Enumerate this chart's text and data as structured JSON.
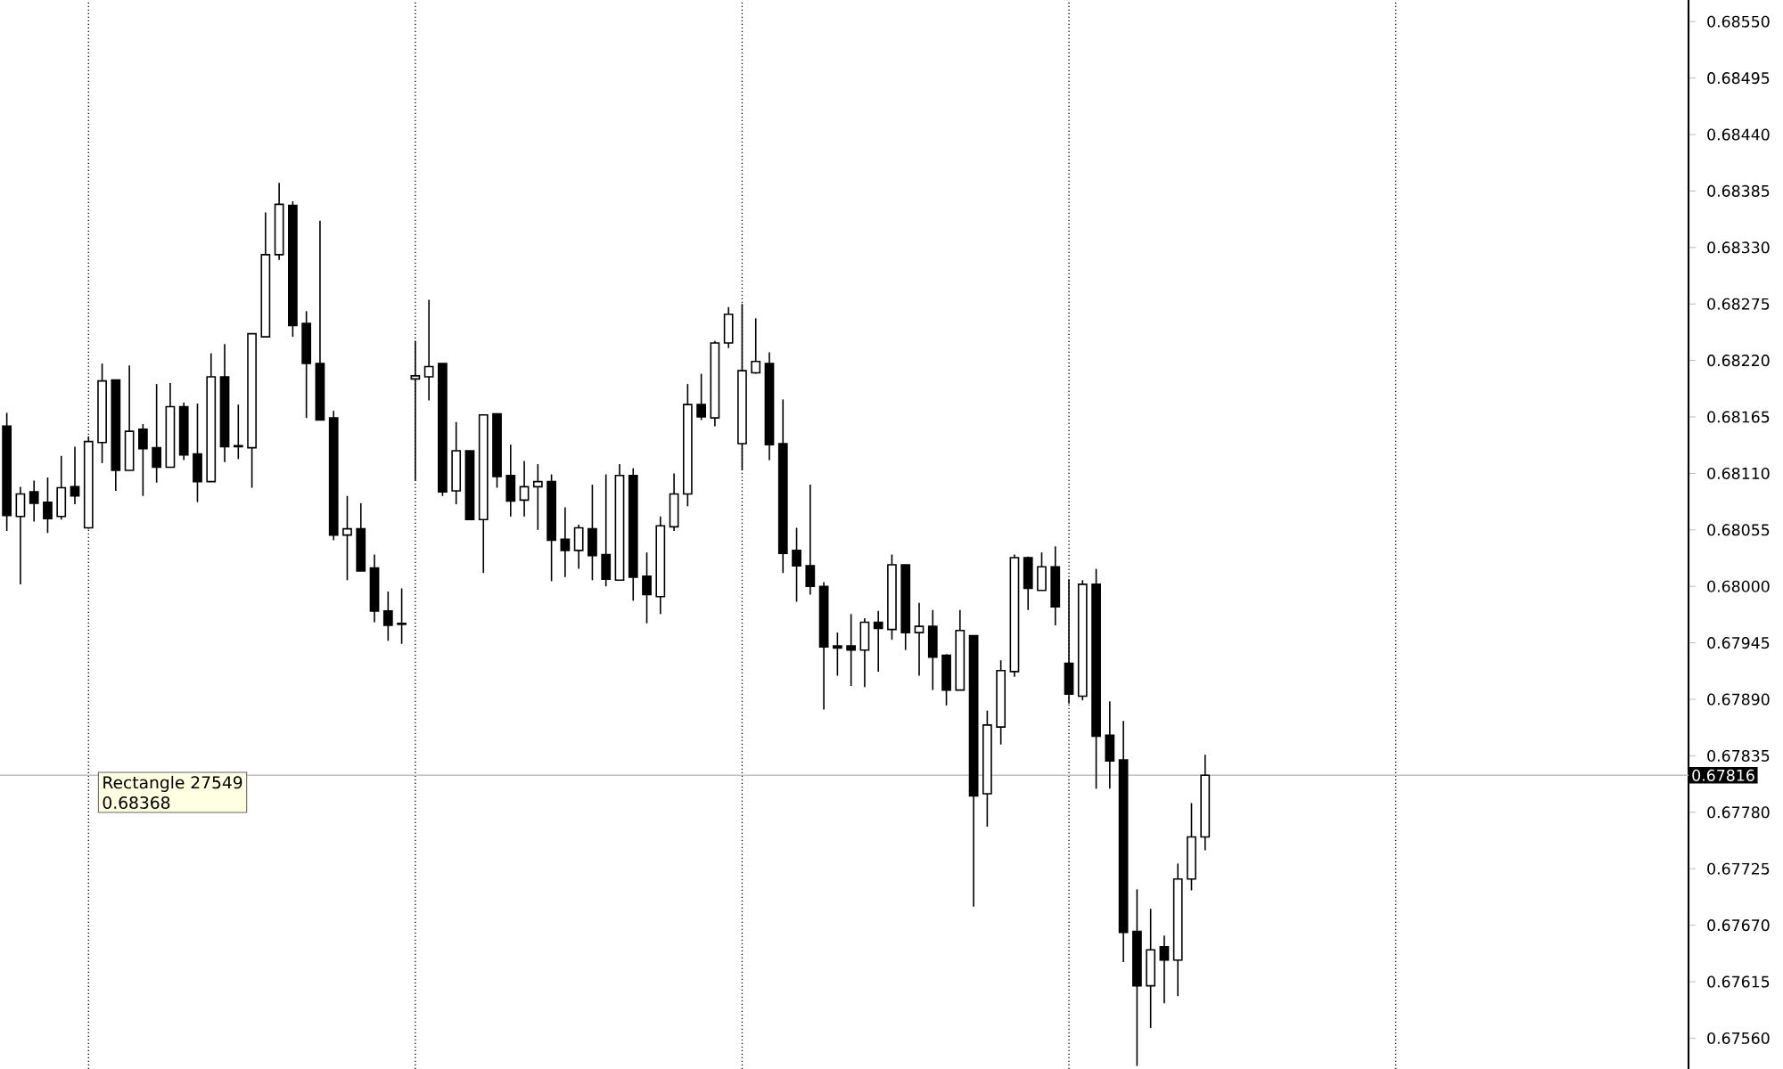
{
  "chart_data": {
    "type": "candlestick",
    "categories": [
      null,
      null,
      null,
      null,
      null,
      null,
      null,
      null,
      null,
      null,
      null,
      null,
      null,
      null,
      null,
      null,
      null,
      null,
      null,
      null,
      null,
      null,
      null,
      null,
      null,
      null,
      null,
      null,
      null,
      null,
      null,
      null,
      null,
      null,
      null,
      null,
      null,
      null,
      null,
      null,
      null,
      null,
      null,
      null,
      null,
      null,
      null,
      null,
      null,
      null,
      null,
      null,
      null,
      null,
      null,
      null,
      null,
      null,
      null,
      null,
      null,
      null,
      null,
      null,
      null,
      null,
      null,
      null,
      null,
      null,
      null,
      null,
      null,
      null,
      null,
      null,
      null,
      null,
      null,
      null,
      null,
      null,
      null,
      null,
      null,
      null,
      null,
      null,
      null,
      null,
      null,
      null,
      null,
      null,
      null,
      null,
      null,
      null,
      null,
      null,
      null,
      null,
      null,
      null,
      null,
      null,
      null,
      null,
      null,
      null,
      null,
      null,
      null,
      null,
      null,
      null,
      null,
      null,
      null,
      null,
      null,
      null,
      null,
      null
    ],
    "ohlc": [
      [
        0.68156,
        0.68169,
        0.68054,
        0.68069
      ],
      [
        0.68068,
        0.68097,
        0.68002,
        0.6809
      ],
      [
        0.68092,
        0.68103,
        0.68063,
        0.68081
      ],
      [
        0.68082,
        0.68106,
        0.68052,
        0.68066
      ],
      [
        0.68068,
        0.68127,
        0.68065,
        0.68096
      ],
      [
        0.68097,
        0.68136,
        0.6808,
        0.68088
      ],
      [
        0.68057,
        0.68146,
        0.68056,
        0.68141
      ],
      [
        0.6814,
        0.68217,
        0.6812,
        0.682
      ],
      [
        0.68201,
        0.68201,
        0.68093,
        0.68113
      ],
      [
        0.68113,
        0.68215,
        0.68113,
        0.68151
      ],
      [
        0.68153,
        0.68158,
        0.68088,
        0.68134
      ],
      [
        0.68135,
        0.68197,
        0.68101,
        0.68116
      ],
      [
        0.68116,
        0.68198,
        0.68116,
        0.68175
      ],
      [
        0.68175,
        0.68179,
        0.68123,
        0.68128
      ],
      [
        0.68129,
        0.68178,
        0.68082,
        0.68102
      ],
      [
        0.68102,
        0.68227,
        0.68102,
        0.68204
      ],
      [
        0.68204,
        0.68236,
        0.68121,
        0.68136
      ],
      [
        0.68137,
        0.68177,
        0.68124,
        0.68136
      ],
      [
        0.68135,
        0.68246,
        0.68096,
        0.68246
      ],
      [
        0.68243,
        0.68364,
        0.68243,
        0.68323
      ],
      [
        0.68323,
        0.68393,
        0.68318,
        0.68372
      ],
      [
        0.68371,
        0.68375,
        0.68243,
        0.68254
      ],
      [
        0.68256,
        0.68268,
        0.68164,
        0.68217
      ],
      [
        0.68217,
        0.68356,
        0.68162,
        0.68162
      ],
      [
        0.68164,
        0.68171,
        0.68045,
        0.6805
      ],
      [
        0.6805,
        0.68088,
        0.68006,
        0.68056
      ],
      [
        0.68056,
        0.68081,
        0.68015,
        0.68015
      ],
      [
        0.68018,
        0.68031,
        0.67965,
        0.67976
      ],
      [
        0.67976,
        0.67995,
        0.67947,
        0.67962
      ],
      [
        0.67964,
        0.67998,
        0.67944,
        0.67963
      ],
      [
        0.68202,
        0.68239,
        0.68103,
        0.68205
      ],
      [
        0.68204,
        0.68279,
        0.68181,
        0.68214
      ],
      [
        0.68217,
        0.68217,
        0.68088,
        0.68092
      ],
      [
        0.68093,
        0.6816,
        0.6808,
        0.68132
      ],
      [
        0.68132,
        0.68132,
        0.68065,
        0.68065
      ],
      [
        0.68065,
        0.68167,
        0.68013,
        0.68167
      ],
      [
        0.68168,
        0.68168,
        0.68096,
        0.68107
      ],
      [
        0.68108,
        0.68138,
        0.68068,
        0.68083
      ],
      [
        0.68084,
        0.68122,
        0.68068,
        0.68097
      ],
      [
        0.68097,
        0.68119,
        0.68055,
        0.68102
      ],
      [
        0.68102,
        0.68109,
        0.68005,
        0.68045
      ],
      [
        0.68046,
        0.68077,
        0.68009,
        0.68035
      ],
      [
        0.68035,
        0.6806,
        0.68017,
        0.68057
      ],
      [
        0.68056,
        0.68099,
        0.68006,
        0.6803
      ],
      [
        0.68031,
        0.68109,
        0.68,
        0.68007
      ],
      [
        0.68006,
        0.68119,
        0.68006,
        0.68108
      ],
      [
        0.68108,
        0.68115,
        0.67986,
        0.68009
      ],
      [
        0.6801,
        0.68033,
        0.67964,
        0.67992
      ],
      [
        0.6799,
        0.68068,
        0.67973,
        0.68059
      ],
      [
        0.68058,
        0.6811,
        0.68054,
        0.6809
      ],
      [
        0.6809,
        0.68197,
        0.68078,
        0.68177
      ],
      [
        0.68177,
        0.68207,
        0.68162,
        0.68165
      ],
      [
        0.68164,
        0.68239,
        0.68156,
        0.68237
      ],
      [
        0.68237,
        0.68272,
        0.68232,
        0.68265
      ],
      [
        0.68139,
        0.68275,
        0.68113,
        0.6821
      ],
      [
        0.68208,
        0.68261,
        0.68207,
        0.68219
      ],
      [
        0.68217,
        0.68228,
        0.68123,
        0.68138
      ],
      [
        0.68139,
        0.68182,
        0.68013,
        0.68032
      ],
      [
        0.68035,
        0.68057,
        0.67985,
        0.6802
      ],
      [
        0.6802,
        0.68099,
        0.67992,
        0.68
      ],
      [
        0.68,
        0.68004,
        0.6788,
        0.67941
      ],
      [
        0.67942,
        0.67955,
        0.67913,
        0.6794
      ],
      [
        0.67942,
        0.67973,
        0.67903,
        0.67938
      ],
      [
        0.67938,
        0.67969,
        0.67902,
        0.67965
      ],
      [
        0.67965,
        0.67976,
        0.67917,
        0.67959
      ],
      [
        0.67958,
        0.68031,
        0.67948,
        0.68021
      ],
      [
        0.68021,
        0.68021,
        0.67938,
        0.67955
      ],
      [
        0.67955,
        0.67984,
        0.67913,
        0.67961
      ],
      [
        0.67961,
        0.67977,
        0.67899,
        0.67931
      ],
      [
        0.67933,
        0.67934,
        0.67884,
        0.67899
      ],
      [
        0.67899,
        0.67977,
        0.67899,
        0.67957
      ],
      [
        0.67952,
        0.67952,
        0.67688,
        0.67796
      ],
      [
        0.67798,
        0.67879,
        0.67766,
        0.67865
      ],
      [
        0.67863,
        0.67928,
        0.67846,
        0.67918
      ],
      [
        0.67917,
        0.68031,
        0.67912,
        0.68028
      ],
      [
        0.68028,
        0.68029,
        0.67977,
        0.67998
      ],
      [
        0.67996,
        0.68033,
        0.67996,
        0.68019
      ],
      [
        0.68019,
        0.68039,
        0.67962,
        0.6798
      ],
      [
        0.67925,
        0.68007,
        0.67886,
        0.67895
      ],
      [
        0.67893,
        0.68006,
        0.67889,
        0.68002
      ],
      [
        0.68002,
        0.68017,
        0.67803,
        0.67854
      ],
      [
        0.67855,
        0.67888,
        0.67803,
        0.6783
      ],
      [
        0.67831,
        0.67869,
        0.67634,
        0.67663
      ],
      [
        0.67664,
        0.67705,
        0.67533,
        0.67611
      ],
      [
        0.67611,
        0.67686,
        0.6757,
        0.67646
      ],
      [
        0.67649,
        0.6766,
        0.67594,
        0.67636
      ],
      [
        0.67636,
        0.6773,
        0.67601,
        0.67715
      ],
      [
        0.67715,
        0.67789,
        0.67704,
        0.67756
      ],
      [
        0.67756,
        0.67836,
        0.67743,
        0.67816
      ],
      null,
      null,
      null,
      null,
      null,
      null,
      null,
      null,
      null,
      null,
      null,
      null,
      null,
      null,
      null,
      null,
      null,
      null,
      null,
      null,
      null,
      null,
      null,
      null,
      null,
      null,
      null,
      null,
      null,
      null,
      null,
      null,
      null,
      null,
      null
    ],
    "colors": [
      "#000000",
      "#ffffff",
      "#000000",
      "#000000",
      "#ffffff",
      "#000000",
      "#ffffff",
      "#ffffff",
      "#000000",
      "#ffffff",
      "#000000",
      "#000000",
      "#ffffff",
      "#000000",
      "#000000",
      "#ffffff",
      "#000000",
      "#000000",
      "#ffffff",
      "#ffffff",
      "#ffffff",
      "#000000",
      "#000000",
      "#000000",
      "#000000",
      "#ffffff",
      "#000000",
      "#000000",
      "#000000",
      "#000000",
      "#ffffff",
      "#ffffff",
      "#000000",
      "#ffffff",
      "#000000",
      "#ffffff",
      "#000000",
      "#000000",
      "#ffffff",
      "#ffffff",
      "#000000",
      "#000000",
      "#ffffff",
      "#000000",
      "#000000",
      "#ffffff",
      "#000000",
      "#000000",
      "#ffffff",
      "#ffffff",
      "#ffffff",
      "#000000",
      "#ffffff",
      "#ffffff",
      "#ffffff",
      "#ffffff",
      "#000000",
      "#000000",
      "#000000",
      "#000000",
      "#000000",
      "#000000",
      "#000000",
      "#ffffff",
      "#000000",
      "#ffffff",
      "#000000",
      "#ffffff",
      "#000000",
      "#000000",
      "#ffffff",
      "#000000",
      "#ffffff",
      "#ffffff",
      "#ffffff",
      "#000000",
      "#ffffff",
      "#000000",
      "#000000",
      "#ffffff",
      "#000000",
      "#000000",
      "#000000",
      "#000000",
      "#ffffff",
      "#000000",
      "#ffffff",
      "#ffffff",
      "#ffffff",
      null,
      null,
      null,
      null,
      null,
      null,
      null,
      null,
      null,
      null,
      null,
      null,
      null,
      null,
      null,
      null,
      null,
      null,
      null,
      null,
      null,
      null,
      null,
      null,
      null,
      null,
      null,
      null,
      null,
      null,
      null,
      null,
      null,
      null,
      null
    ],
    "ylim": [
      0.6753,
      0.68571
    ],
    "yticks": [
      {
        "value": 0.6855,
        "label": "0.68550"
      },
      {
        "value": 0.68495,
        "label": "0.68495"
      },
      {
        "value": 0.6844,
        "label": "0.68440"
      },
      {
        "value": 0.68385,
        "label": "0.68385"
      },
      {
        "value": 0.6833,
        "label": "0.68330"
      },
      {
        "value": 0.68275,
        "label": "0.68275"
      },
      {
        "value": 0.6822,
        "label": "0.68220"
      },
      {
        "value": 0.68165,
        "label": "0.68165"
      },
      {
        "value": 0.6811,
        "label": "0.68110"
      },
      {
        "value": 0.68055,
        "label": "0.68055"
      },
      {
        "value": 0.68,
        "label": "0.68000"
      },
      {
        "value": 0.67945,
        "label": "0.67945"
      },
      {
        "value": 0.6789,
        "label": "0.67890"
      },
      {
        "value": 0.67835,
        "label": "0.67835"
      },
      {
        "value": 0.6778,
        "label": "0.67780"
      },
      {
        "value": 0.67725,
        "label": "0.67725"
      },
      {
        "value": 0.6767,
        "label": "0.67670"
      },
      {
        "value": 0.67615,
        "label": "0.67615"
      },
      {
        "value": 0.6756,
        "label": "0.67560"
      }
    ],
    "ref_lines": [
      {
        "axis": "y",
        "value": 0.67816,
        "label": "0.67816",
        "color": "#c0c0c0"
      }
    ],
    "annotations": [
      "Rectangle 27549",
      "0.68368"
    ],
    "grid": "x"
  }
}
